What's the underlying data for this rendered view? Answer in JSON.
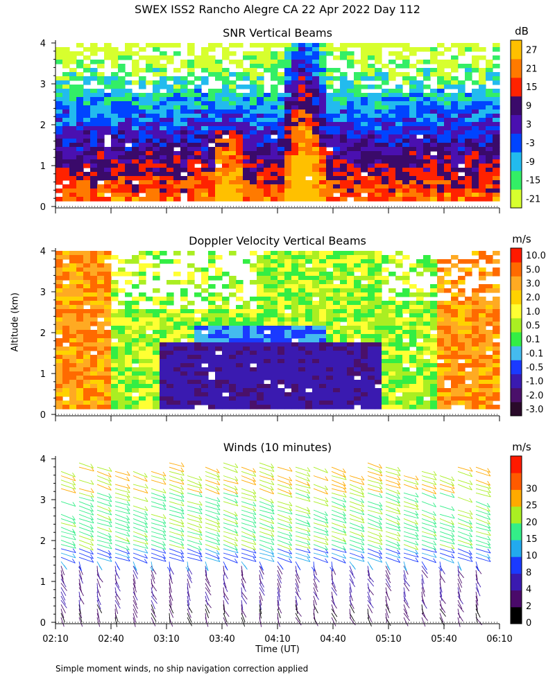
{
  "title": "SWEX ISS2 Rancho Alegre CA  22 Apr 2022 Day 112",
  "footnote": "Simple moment winds, no ship navigation correction applied",
  "chart_data": [
    {
      "type": "heatmap",
      "title": "SNR Vertical Beams",
      "ylabel": "Altitude (km)",
      "xlabel": "",
      "ylim": [
        0,
        4
      ],
      "yticks": [
        "0",
        "1",
        "2",
        "3",
        "4"
      ],
      "xlim": [
        "02:10",
        "06:10"
      ],
      "colorbar": {
        "unit": "dB",
        "labels": [
          "-21",
          "-15",
          "-9",
          "-3",
          "3",
          "9",
          "15",
          "21",
          "27"
        ],
        "colors": [
          "#d7ff2e",
          "#33ee66",
          "#22bbee",
          "#0044ff",
          "#4a10b0",
          "#3a0a6a",
          "#ff2200",
          "#ff7a00",
          "#ffc000"
        ]
      }
    },
    {
      "type": "heatmap",
      "title": "Doppler Velocity Vertical Beams",
      "ylim": [
        0,
        4
      ],
      "yticks": [
        "0",
        "1",
        "2",
        "3",
        "4"
      ],
      "xlim": [
        "02:10",
        "06:10"
      ],
      "colorbar": {
        "unit": "m/s",
        "labels": [
          "10.0",
          "5.0",
          "3.0",
          "2.0",
          "1.0",
          "0.5",
          "0.1",
          "-0.1",
          "-0.5",
          "-1.0",
          "-2.0",
          "-3.0"
        ],
        "colors": [
          "#2a0a2a",
          "#4a106a",
          "#3a1ab0",
          "#1a3aff",
          "#44bbee",
          "#33ee44",
          "#aaee22",
          "#ffff33",
          "#ffd200",
          "#ffaa22",
          "#ff6a00",
          "#ff1a00"
        ]
      }
    },
    {
      "type": "scatter",
      "title": "Winds (10 minutes)",
      "xlabel": "Time (UT)",
      "ylim": [
        0,
        4
      ],
      "yticks": [
        "0",
        "1",
        "2",
        "3",
        "4"
      ],
      "xticks": [
        "02:10",
        "02:40",
        "03:10",
        "03:40",
        "04:10",
        "04:40",
        "05:10",
        "05:40",
        "06:10"
      ],
      "colorbar": {
        "unit": "m/s",
        "labels": [
          "0",
          "2",
          "4",
          "8",
          "10",
          "15",
          "20",
          "25",
          "30"
        ],
        "colors": [
          "#000000",
          "#4a0a6a",
          "#3a1ab0",
          "#1a3aff",
          "#22aaee",
          "#33ee88",
          "#aaee22",
          "#ffaa00",
          "#ff5a00",
          "#ff1a00"
        ]
      }
    }
  ]
}
